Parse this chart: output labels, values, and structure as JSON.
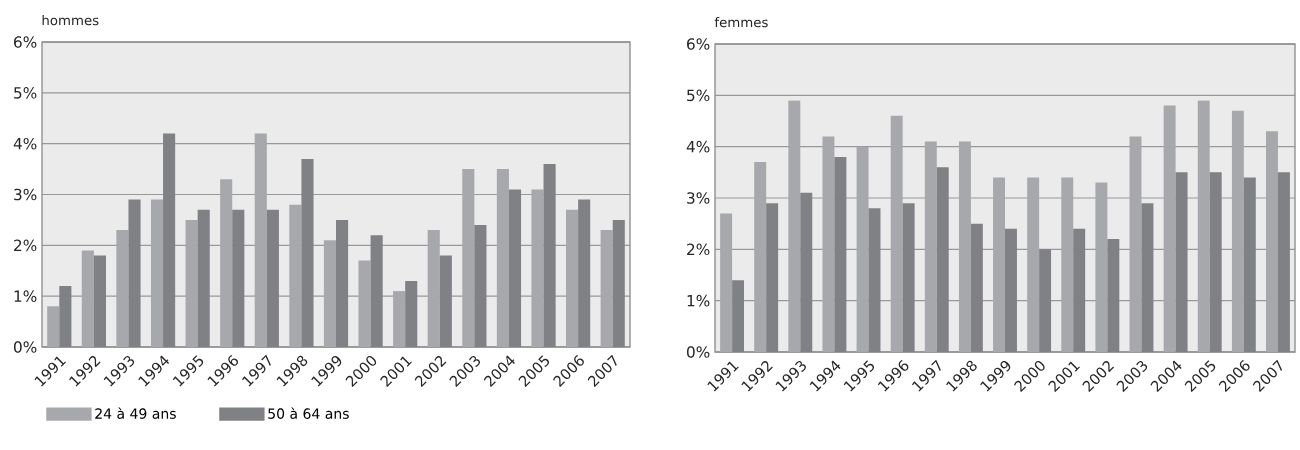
{
  "chart_data": [
    {
      "type": "bar",
      "title": "hommes",
      "categories": [
        "1991",
        "1992",
        "1993",
        "1994",
        "1995",
        "1996",
        "1997",
        "1998",
        "1999",
        "2000",
        "2001",
        "2002",
        "2003",
        "2004",
        "2005",
        "2006",
        "2007"
      ],
      "series": [
        {
          "name": "24 à 49 ans",
          "color": "#a7a8ab",
          "values": [
            0.8,
            1.9,
            2.3,
            2.9,
            2.5,
            3.3,
            4.2,
            2.8,
            2.1,
            1.7,
            1.1,
            2.3,
            3.5,
            3.5,
            3.1,
            2.7,
            2.3
          ]
        },
        {
          "name": "50 à 64 ans",
          "color": "#808185",
          "values": [
            1.2,
            1.8,
            2.9,
            4.2,
            2.7,
            2.7,
            2.7,
            3.7,
            2.5,
            2.2,
            1.3,
            1.8,
            2.4,
            3.1,
            3.6,
            2.9,
            2.5
          ]
        }
      ],
      "ylim": [
        0,
        6
      ],
      "yticks": [
        {
          "value": 0,
          "label": "0%"
        },
        {
          "value": 1,
          "label": "1%"
        },
        {
          "value": 2,
          "label": "2%"
        },
        {
          "value": 3,
          "label": "3%"
        },
        {
          "value": 4,
          "label": "4%"
        },
        {
          "value": 5,
          "label": "5%"
        },
        {
          "value": 6,
          "label": "6%"
        }
      ],
      "grid": "y",
      "legend": "bottom left"
    },
    {
      "type": "bar",
      "title": "femmes",
      "categories": [
        "1991",
        "1992",
        "1993",
        "1994",
        "1995",
        "1996",
        "1997",
        "1998",
        "1999",
        "2000",
        "2001",
        "2002",
        "2003",
        "2004",
        "2005",
        "2006",
        "2007"
      ],
      "series": [
        {
          "color": "#a7a8ab",
          "values": [
            2.7,
            3.7,
            4.9,
            4.2,
            4.0,
            4.6,
            4.1,
            4.1,
            3.4,
            3.4,
            3.4,
            3.3,
            4.2,
            4.8,
            4.9,
            4.7,
            4.3
          ]
        },
        {
          "color": "#808185",
          "values": [
            1.4,
            2.9,
            3.1,
            3.8,
            2.8,
            2.9,
            3.6,
            2.5,
            2.4,
            2.0,
            2.4,
            2.2,
            2.9,
            3.5,
            3.5,
            3.4,
            3.5
          ]
        }
      ],
      "ylim": [
        0,
        6
      ],
      "yticks": [
        {
          "value": 0,
          "label": "0%"
        },
        {
          "value": 1,
          "label": "1%"
        },
        {
          "value": 2,
          "label": "2%"
        },
        {
          "value": 3,
          "label": "3%"
        },
        {
          "value": 4,
          "label": "4%"
        },
        {
          "value": 5,
          "label": "5%"
        },
        {
          "value": 6,
          "label": "6%"
        }
      ],
      "grid": "y",
      "legend": false
    }
  ]
}
